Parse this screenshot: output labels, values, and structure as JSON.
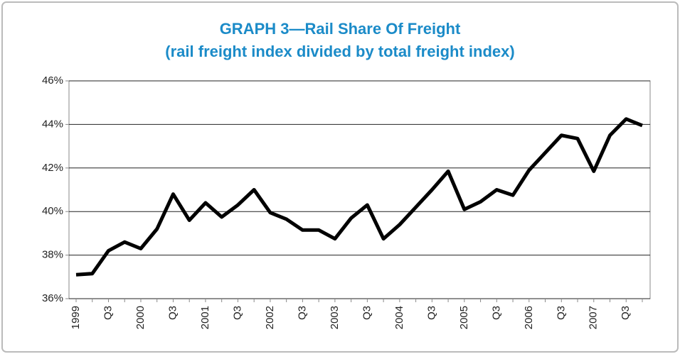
{
  "chart_data": {
    "type": "line",
    "title": "GRAPH 3—Rail Share Of Freight",
    "subtitle": "(rail freight index divided by total freight index)",
    "categories": [
      "1999",
      null,
      "Q3",
      null,
      "2000",
      null,
      "Q3",
      null,
      "2001",
      null,
      "Q3",
      null,
      "2002",
      null,
      "Q3",
      null,
      "2003",
      null,
      "Q3",
      null,
      "2004",
      null,
      "Q3",
      null,
      "2005",
      null,
      "Q3",
      null,
      "2006",
      null,
      "Q3",
      null,
      "2007",
      null,
      "Q3",
      null
    ],
    "series": [
      {
        "name": "Rail share",
        "color": "#000000",
        "values": [
          37.1,
          37.15,
          38.2,
          38.6,
          38.3,
          39.2,
          40.8,
          39.6,
          40.4,
          39.75,
          40.3,
          41.0,
          39.95,
          39.65,
          39.15,
          39.15,
          38.75,
          39.7,
          40.3,
          38.75,
          39.4,
          40.2,
          41.0,
          41.85,
          40.1,
          40.45,
          41.0,
          40.75,
          41.9,
          42.7,
          43.5,
          43.35,
          41.85,
          43.5,
          44.25,
          43.95
        ]
      }
    ],
    "ylim": [
      36,
      46
    ],
    "yticks": [
      {
        "value": 36,
        "label": "36%"
      },
      {
        "value": 38,
        "label": "38%"
      },
      {
        "value": 40,
        "label": "40%"
      },
      {
        "value": 42,
        "label": "42%"
      },
      {
        "value": 44,
        "label": "44%"
      },
      {
        "value": 46,
        "label": "46%"
      }
    ],
    "grid": true
  }
}
